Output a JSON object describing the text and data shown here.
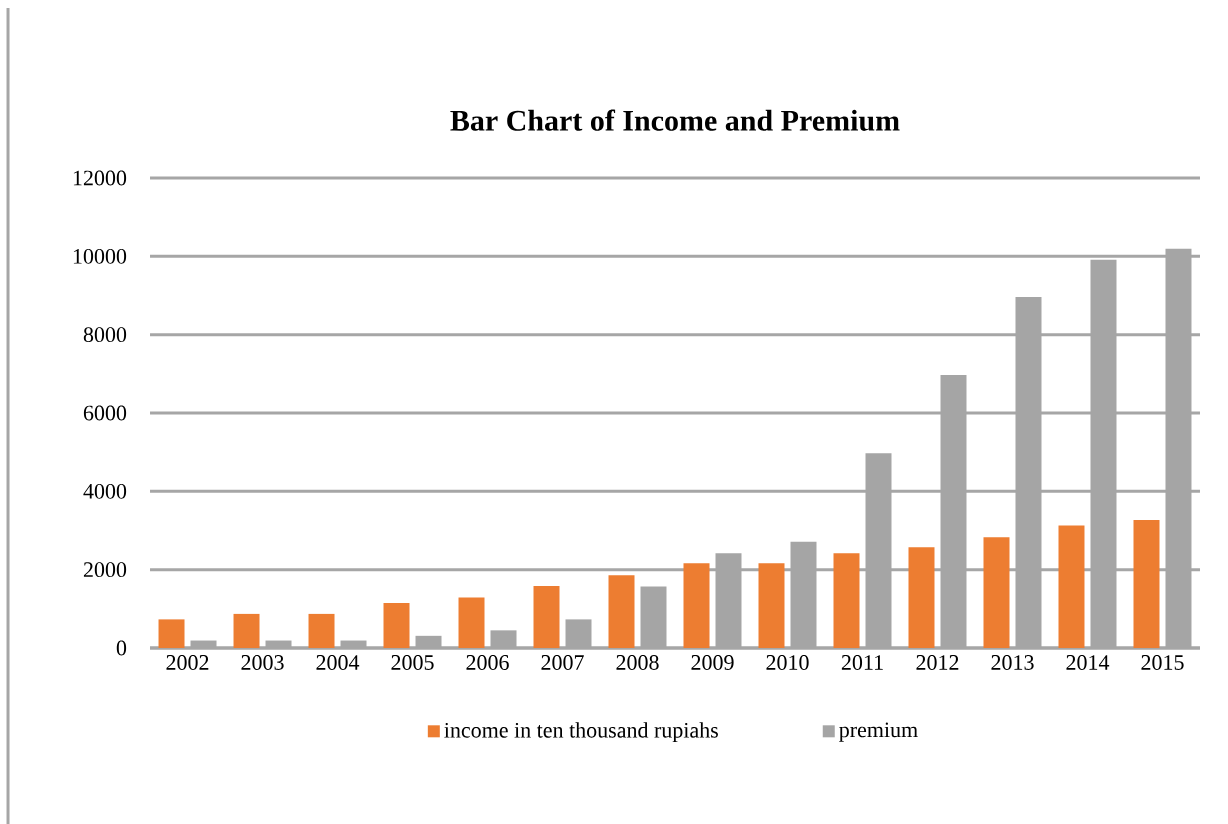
{
  "chart_data": {
    "type": "bar",
    "title": "Bar Chart of Income and Premium",
    "categories": [
      "2002",
      "2003",
      "2004",
      "2005",
      "2006",
      "2007",
      "2008",
      "2009",
      "2010",
      "2011",
      "2012",
      "2013",
      "2014",
      "2015"
    ],
    "series": [
      {
        "name": "income in ten thousand rupiahs",
        "color": "#ed7d31",
        "values": [
          730,
          870,
          870,
          1150,
          1290,
          1580,
          1860,
          2160,
          2160,
          2420,
          2570,
          2830,
          3130,
          3270
        ]
      },
      {
        "name": "premium",
        "color": "#a5a5a5",
        "values": [
          190,
          190,
          190,
          310,
          450,
          730,
          1570,
          2420,
          2710,
          4970,
          6970,
          8960,
          9910,
          10190
        ]
      }
    ],
    "ylim": [
      0,
      12000
    ],
    "yticks": [
      0,
      2000,
      4000,
      6000,
      8000,
      10000,
      12000
    ],
    "grid": "y",
    "legend": "bottom"
  }
}
